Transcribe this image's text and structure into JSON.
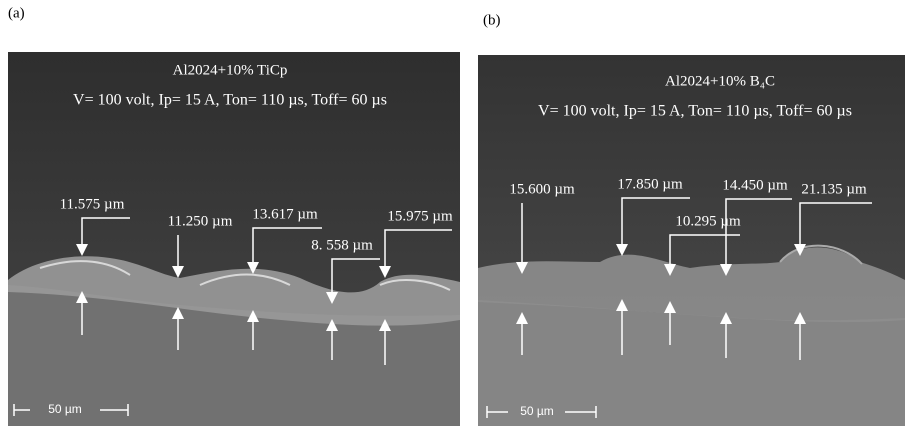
{
  "panels": [
    {
      "label": "(a)",
      "title": "Al2024+10% TiCp",
      "parameters": "V= 100 volt, Ip= 15 A, Ton= 110 µs, Toff= 60 µs",
      "measurements": [
        "11.575 µm",
        "11.250 µm",
        "13.617 µm",
        "8. 558 µm",
        "15.975 µm"
      ],
      "scale_bar": "50 µm"
    },
    {
      "label": "(b)",
      "title": "Al2024+10% B₄C",
      "parameters": "V= 100 volt, Ip= 15 A, Ton= 110 µs, Toff= 60 µs",
      "measurements": [
        "15.600 µm",
        "17.850 µm",
        "10.295 µm",
        "14.450 µm",
        "21.135 µm"
      ],
      "scale_bar": "50 µm"
    }
  ]
}
